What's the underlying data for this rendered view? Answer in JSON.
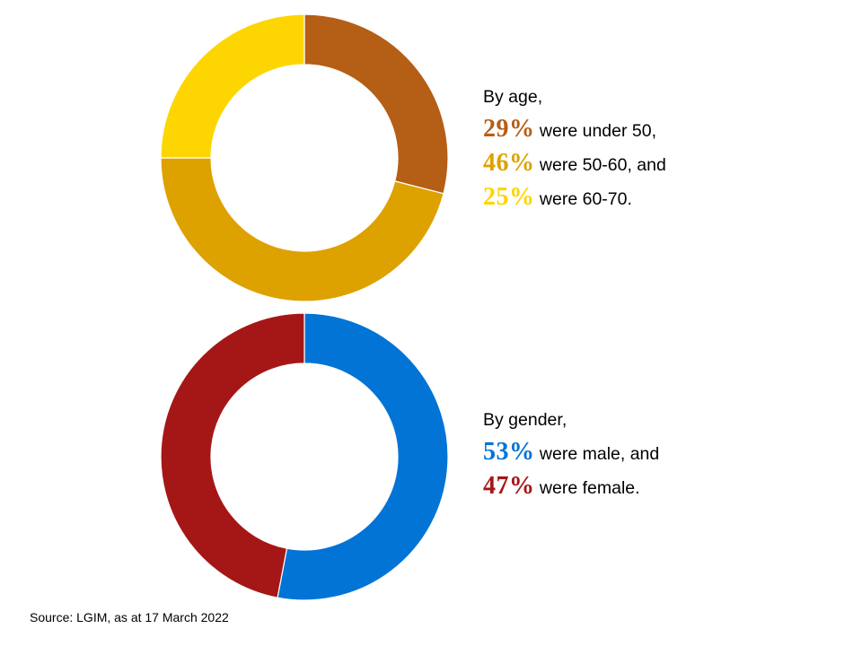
{
  "chart_data": [
    {
      "type": "pie",
      "donut": true,
      "categories": [
        "under 50",
        "50-60",
        "60-70"
      ],
      "values": [
        29,
        46,
        25
      ],
      "colors": [
        "#b55e15",
        "#dda100",
        "#fdd500"
      ],
      "caption": {
        "intro": "By age,",
        "lines": [
          {
            "value": "29%",
            "text": " were under 50,"
          },
          {
            "value": "46%",
            "text": " were 50-60, and"
          },
          {
            "value": "25%",
            "text": " were 60-70."
          }
        ]
      }
    },
    {
      "type": "pie",
      "donut": true,
      "categories": [
        "male",
        "female"
      ],
      "values": [
        53,
        47
      ],
      "colors": [
        "#0174d6",
        "#a51716"
      ],
      "caption": {
        "intro": "By gender,",
        "lines": [
          {
            "value": "53%",
            "text": " were male, and"
          },
          {
            "value": "47%",
            "text": " were female."
          }
        ]
      }
    }
  ],
  "source": "Source: LGIM,  as at 17 March 2022"
}
